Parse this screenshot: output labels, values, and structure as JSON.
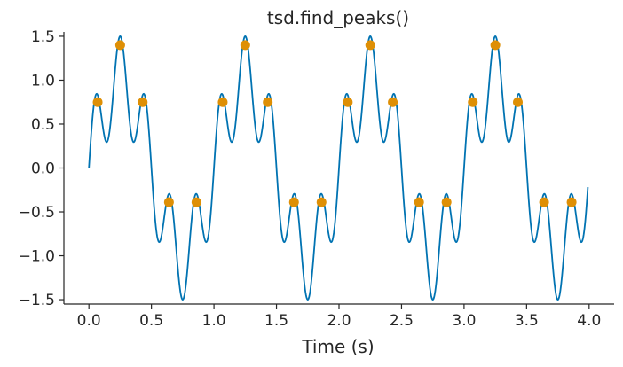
{
  "chart_data": {
    "type": "line",
    "title": "tsd.find_peaks()",
    "xlabel": "Time (s)",
    "ylabel": "",
    "xlim": [
      -0.2,
      4.2
    ],
    "ylim": [
      -1.55,
      1.55
    ],
    "grid": false,
    "x_ticks": [
      0.0,
      0.5,
      1.0,
      1.5,
      2.0,
      2.5,
      3.0,
      3.5,
      4.0
    ],
    "x_tick_labels": [
      "0.0",
      "0.5",
      "1.0",
      "1.5",
      "2.0",
      "2.5",
      "3.0",
      "3.5",
      "4.0"
    ],
    "y_ticks": [
      -1.5,
      -1.0,
      -0.5,
      0.0,
      0.5,
      1.0,
      1.5
    ],
    "y_tick_labels": [
      "−1.5",
      "−1.0",
      "−0.5",
      "0.0",
      "0.5",
      "1.0",
      "1.5"
    ],
    "signal": {
      "x_start": 0.0,
      "x_end": 3.99,
      "components": [
        {
          "amplitude": 1.0,
          "frequency": 1
        },
        {
          "amplitude": 0.5,
          "frequency": 5
        }
      ],
      "color": "#0173b2"
    },
    "peaks": {
      "color": "#de8f05",
      "x": [
        0.07,
        0.25,
        0.43,
        0.64,
        0.86,
        1.07,
        1.25,
        1.43,
        1.64,
        1.86,
        2.07,
        2.25,
        2.43,
        2.64,
        2.86,
        3.07,
        3.25,
        3.43,
        3.64,
        3.86
      ],
      "y": [
        0.75,
        1.4,
        0.75,
        -0.39,
        -0.39,
        0.75,
        1.4,
        0.75,
        -0.39,
        -0.39,
        0.75,
        1.4,
        0.75,
        -0.39,
        -0.39,
        0.75,
        1.4,
        0.75,
        -0.39,
        -0.39
      ]
    }
  }
}
